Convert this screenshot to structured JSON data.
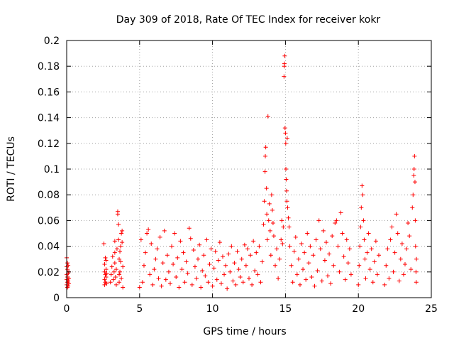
{
  "chart_data": {
    "type": "scatter",
    "title": "Day 309 of 2018, Rate Of TEC Index for receiver kokr",
    "xlabel": "GPS time / hours",
    "ylabel": "ROTI / TECUs",
    "xlim": [
      0,
      25
    ],
    "ylim": [
      0,
      0.2
    ],
    "xticks": [
      0,
      5,
      10,
      15,
      20,
      25
    ],
    "yticks": [
      0,
      0.02,
      0.04,
      0.06,
      0.08,
      0.1,
      0.12,
      0.14,
      0.16,
      0.18,
      0.2
    ],
    "grid": true,
    "marker": "+",
    "colors": {
      "points": "#ff0000",
      "grid": "#a0a0a0",
      "axes": "#000000"
    },
    "series": [
      {
        "points": [
          [
            0.0,
            0.01
          ],
          [
            0.0,
            0.014
          ],
          [
            0.0,
            0.018
          ],
          [
            0.0,
            0.024
          ],
          [
            0.0,
            0.031
          ],
          [
            0.05,
            0.008
          ],
          [
            0.05,
            0.012
          ],
          [
            0.05,
            0.016
          ],
          [
            0.05,
            0.022
          ],
          [
            0.05,
            0.027
          ],
          [
            0.1,
            0.009
          ],
          [
            0.1,
            0.013
          ],
          [
            0.1,
            0.019
          ],
          [
            0.1,
            0.025
          ],
          [
            0.15,
            0.011
          ],
          [
            0.15,
            0.015
          ],
          [
            0.15,
            0.02
          ],
          [
            2.55,
            0.042
          ],
          [
            2.6,
            0.01
          ],
          [
            2.6,
            0.014
          ],
          [
            2.6,
            0.02
          ],
          [
            2.6,
            0.026
          ],
          [
            2.65,
            0.012
          ],
          [
            2.65,
            0.018
          ],
          [
            2.65,
            0.031
          ],
          [
            2.7,
            0.016
          ],
          [
            2.7,
            0.022
          ],
          [
            2.7,
            0.029
          ],
          [
            2.75,
            0.011
          ],
          [
            2.75,
            0.019
          ],
          [
            3.0,
            0.012
          ],
          [
            3.05,
            0.018
          ],
          [
            3.1,
            0.024
          ],
          [
            3.15,
            0.032
          ],
          [
            3.2,
            0.014
          ],
          [
            3.25,
            0.02
          ],
          [
            3.3,
            0.027
          ],
          [
            3.3,
            0.035
          ],
          [
            3.35,
            0.016
          ],
          [
            3.4,
            0.022
          ],
          [
            3.45,
            0.038
          ],
          [
            3.5,
            0.065
          ],
          [
            3.5,
            0.067
          ],
          [
            3.55,
            0.057
          ],
          [
            3.55,
            0.045
          ],
          [
            3.6,
            0.03
          ],
          [
            3.6,
            0.012
          ],
          [
            3.65,
            0.02
          ],
          [
            3.65,
            0.036
          ],
          [
            3.7,
            0.04
          ],
          [
            3.75,
            0.05
          ],
          [
            3.8,
            0.052
          ],
          [
            3.8,
            0.043
          ],
          [
            3.85,
            0.008
          ],
          [
            3.85,
            0.024
          ],
          [
            3.75,
            0.015
          ],
          [
            3.7,
            0.028
          ],
          [
            3.6,
            0.018
          ],
          [
            3.4,
            0.01
          ],
          [
            3.3,
            0.044
          ],
          [
            5.0,
            0.008
          ],
          [
            5.1,
            0.045
          ],
          [
            5.2,
            0.012
          ],
          [
            5.3,
            0.025
          ],
          [
            5.4,
            0.035
          ],
          [
            5.5,
            0.05
          ],
          [
            5.6,
            0.053
          ],
          [
            5.7,
            0.018
          ],
          [
            5.8,
            0.042
          ],
          [
            5.9,
            0.01
          ],
          [
            6.0,
            0.022
          ],
          [
            6.1,
            0.03
          ],
          [
            6.2,
            0.038
          ],
          [
            6.3,
            0.015
          ],
          [
            6.4,
            0.047
          ],
          [
            6.5,
            0.009
          ],
          [
            6.6,
            0.027
          ],
          [
            6.7,
            0.052
          ],
          [
            6.8,
            0.014
          ],
          [
            6.9,
            0.033
          ],
          [
            7.0,
            0.02
          ],
          [
            7.1,
            0.011
          ],
          [
            7.2,
            0.04
          ],
          [
            7.3,
            0.026
          ],
          [
            7.4,
            0.05
          ],
          [
            7.5,
            0.016
          ],
          [
            7.6,
            0.031
          ],
          [
            7.7,
            0.008
          ],
          [
            7.8,
            0.044
          ],
          [
            7.9,
            0.022
          ],
          [
            8.0,
            0.035
          ],
          [
            8.1,
            0.012
          ],
          [
            8.2,
            0.028
          ],
          [
            8.3,
            0.019
          ],
          [
            8.4,
            0.054
          ],
          [
            8.5,
            0.046
          ],
          [
            8.6,
            0.01
          ],
          [
            8.7,
            0.037
          ],
          [
            8.8,
            0.024
          ],
          [
            8.9,
            0.015
          ],
          [
            9.0,
            0.03
          ],
          [
            9.1,
            0.041
          ],
          [
            9.2,
            0.008
          ],
          [
            9.3,
            0.021
          ],
          [
            9.4,
            0.033
          ],
          [
            9.5,
            0.017
          ],
          [
            9.6,
            0.045
          ],
          [
            9.7,
            0.012
          ],
          [
            9.8,
            0.026
          ],
          [
            9.9,
            0.038
          ],
          [
            10.0,
            0.009
          ],
          [
            10.1,
            0.023
          ],
          [
            10.2,
            0.036
          ],
          [
            10.3,
            0.014
          ],
          [
            10.4,
            0.029
          ],
          [
            10.5,
            0.043
          ],
          [
            10.6,
            0.011
          ],
          [
            10.7,
            0.032
          ],
          [
            10.8,
            0.018
          ],
          [
            10.9,
            0.025
          ],
          [
            11.0,
            0.007
          ],
          [
            11.1,
            0.034
          ],
          [
            11.2,
            0.02
          ],
          [
            11.3,
            0.04
          ],
          [
            11.4,
            0.013
          ],
          [
            11.5,
            0.027
          ],
          [
            11.6,
            0.01
          ],
          [
            11.7,
            0.036
          ],
          [
            11.8,
            0.022
          ],
          [
            11.9,
            0.016
          ],
          [
            12.0,
            0.03
          ],
          [
            12.1,
            0.012
          ],
          [
            12.2,
            0.041
          ],
          [
            12.3,
            0.025
          ],
          [
            12.4,
            0.038
          ],
          [
            12.5,
            0.015
          ],
          [
            12.6,
            0.033
          ],
          [
            12.7,
            0.01
          ],
          [
            12.8,
            0.044
          ],
          [
            12.9,
            0.021
          ],
          [
            13.0,
            0.035
          ],
          [
            13.1,
            0.018
          ],
          [
            13.2,
            0.04
          ],
          [
            13.3,
            0.012
          ],
          [
            13.4,
            0.028
          ],
          [
            13.5,
            0.057
          ],
          [
            13.55,
            0.075
          ],
          [
            13.6,
            0.098
          ],
          [
            13.62,
            0.11
          ],
          [
            13.65,
            0.117
          ],
          [
            13.7,
            0.085
          ],
          [
            13.72,
            0.065
          ],
          [
            13.75,
            0.045
          ],
          [
            13.8,
            0.141
          ],
          [
            13.85,
            0.06
          ],
          [
            13.9,
            0.073
          ],
          [
            13.95,
            0.052
          ],
          [
            14.0,
            0.033
          ],
          [
            14.05,
            0.08
          ],
          [
            14.1,
            0.068
          ],
          [
            14.15,
            0.058
          ],
          [
            14.2,
            0.048
          ],
          [
            14.3,
            0.025
          ],
          [
            14.4,
            0.038
          ],
          [
            14.5,
            0.015
          ],
          [
            14.6,
            0.03
          ],
          [
            14.7,
            0.045
          ],
          [
            14.75,
            0.06
          ],
          [
            14.8,
            0.042
          ],
          [
            14.85,
            0.055
          ],
          [
            14.9,
            0.172
          ],
          [
            14.92,
            0.18
          ],
          [
            14.93,
            0.182
          ],
          [
            14.95,
            0.188
          ],
          [
            14.97,
            0.132
          ],
          [
            15.0,
            0.128
          ],
          [
            15.02,
            0.12
          ],
          [
            15.03,
            0.1
          ],
          [
            15.05,
            0.092
          ],
          [
            15.08,
            0.083
          ],
          [
            15.1,
            0.075
          ],
          [
            15.12,
            0.124
          ],
          [
            15.15,
            0.07
          ],
          [
            15.2,
            0.062
          ],
          [
            15.25,
            0.055
          ],
          [
            15.3,
            0.04
          ],
          [
            15.4,
            0.025
          ],
          [
            15.5,
            0.012
          ],
          [
            15.6,
            0.036
          ],
          [
            15.7,
            0.047
          ],
          [
            15.8,
            0.018
          ],
          [
            15.9,
            0.03
          ],
          [
            16.0,
            0.01
          ],
          [
            16.1,
            0.042
          ],
          [
            16.2,
            0.022
          ],
          [
            16.3,
            0.035
          ],
          [
            16.4,
            0.014
          ],
          [
            16.5,
            0.05
          ],
          [
            16.6,
            0.027
          ],
          [
            16.7,
            0.04
          ],
          [
            16.8,
            0.016
          ],
          [
            16.9,
            0.033
          ],
          [
            17.0,
            0.009
          ],
          [
            17.1,
            0.045
          ],
          [
            17.2,
            0.021
          ],
          [
            17.3,
            0.06
          ],
          [
            17.4,
            0.038
          ],
          [
            17.5,
            0.013
          ],
          [
            17.6,
            0.052
          ],
          [
            17.7,
            0.029
          ],
          [
            17.8,
            0.043
          ],
          [
            17.9,
            0.017
          ],
          [
            18.0,
            0.034
          ],
          [
            18.1,
            0.011
          ],
          [
            18.2,
            0.048
          ],
          [
            18.3,
            0.025
          ],
          [
            18.4,
            0.058
          ],
          [
            18.5,
            0.06
          ],
          [
            18.6,
            0.04
          ],
          [
            18.7,
            0.02
          ],
          [
            18.8,
            0.066
          ],
          [
            18.9,
            0.05
          ],
          [
            19.0,
            0.032
          ],
          [
            19.1,
            0.014
          ],
          [
            19.2,
            0.045
          ],
          [
            19.3,
            0.027
          ],
          [
            19.4,
            0.038
          ],
          [
            19.5,
            0.018
          ],
          [
            20.0,
            0.01
          ],
          [
            20.05,
            0.025
          ],
          [
            20.1,
            0.04
          ],
          [
            20.15,
            0.055
          ],
          [
            20.2,
            0.07
          ],
          [
            20.25,
            0.087
          ],
          [
            20.3,
            0.08
          ],
          [
            20.35,
            0.06
          ],
          [
            20.4,
            0.045
          ],
          [
            20.45,
            0.03
          ],
          [
            20.5,
            0.015
          ],
          [
            20.6,
            0.035
          ],
          [
            20.7,
            0.05
          ],
          [
            20.8,
            0.022
          ],
          [
            20.9,
            0.038
          ],
          [
            21.0,
            0.012
          ],
          [
            21.1,
            0.028
          ],
          [
            21.2,
            0.044
          ],
          [
            21.3,
            0.018
          ],
          [
            21.4,
            0.033
          ],
          [
            21.8,
            0.01
          ],
          [
            21.9,
            0.025
          ],
          [
            22.0,
            0.038
          ],
          [
            22.1,
            0.015
          ],
          [
            22.2,
            0.045
          ],
          [
            22.3,
            0.055
          ],
          [
            22.4,
            0.02
          ],
          [
            22.5,
            0.035
          ],
          [
            22.6,
            0.065
          ],
          [
            22.7,
            0.05
          ],
          [
            22.8,
            0.013
          ],
          [
            22.9,
            0.03
          ],
          [
            23.0,
            0.042
          ],
          [
            23.1,
            0.018
          ],
          [
            23.2,
            0.026
          ],
          [
            23.3,
            0.038
          ],
          [
            23.4,
            0.058
          ],
          [
            23.5,
            0.048
          ],
          [
            23.6,
            0.022
          ],
          [
            23.7,
            0.07
          ],
          [
            23.75,
            0.08
          ],
          [
            23.8,
            0.095
          ],
          [
            23.82,
            0.1
          ],
          [
            23.85,
            0.11
          ],
          [
            23.88,
            0.09
          ],
          [
            23.9,
            0.06
          ],
          [
            23.92,
            0.04
          ],
          [
            23.95,
            0.02
          ],
          [
            23.97,
            0.012
          ],
          [
            23.98,
            0.03
          ]
        ]
      }
    ]
  }
}
